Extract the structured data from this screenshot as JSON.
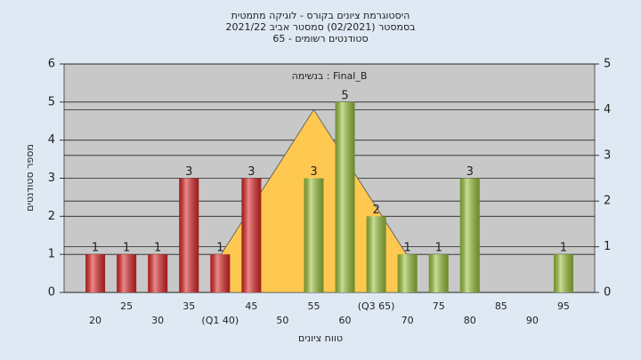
{
  "chart_data": {
    "type": "bar",
    "title": [
      "היסטוגרמת ציונים בקורס - לוגיקה מתמטית",
      "בסמסטר  (02/2021)  סמסטר אביב 2021/22",
      "סטודנטים רשומים - 65"
    ],
    "annotation": "בנשימה : Final_B",
    "xlabel": "טווח ציונים",
    "ylabel": "מספר סטודנטים",
    "categories": [
      "20",
      "25",
      "30",
      "35",
      "(Q1 40)",
      "45",
      "50",
      "55",
      "60",
      "(Q3 65)",
      "70",
      "75",
      "80",
      "85",
      "90",
      "95"
    ],
    "values": [
      1,
      1,
      1,
      3,
      1,
      3,
      0,
      3,
      5,
      2,
      1,
      1,
      3,
      0,
      0,
      1
    ],
    "colors": [
      "#e02828",
      "#e02828",
      "#e02828",
      "#e02828",
      "#e02828",
      "#e02828",
      "#e02828",
      "#9cc43c",
      "#9cc43c",
      "#9cc43c",
      "#9cc43c",
      "#9cc43c",
      "#9cc43c",
      "#9cc43c",
      "#9cc43c",
      "#9cc43c"
    ],
    "curve": {
      "color": "#ffc850",
      "axis": "y2",
      "values": [
        null,
        null,
        null,
        null,
        0.8,
        1.87,
        2.93,
        4,
        2.93,
        1.87,
        0.8,
        null,
        null,
        null,
        null,
        null
      ]
    },
    "ylim": [
      0,
      6
    ],
    "yticks": [
      0,
      1,
      2,
      3,
      4,
      5,
      6
    ],
    "y2lim": [
      0,
      5
    ],
    "y2ticks": [
      0,
      1,
      2,
      3,
      4,
      5
    ],
    "grid": true
  }
}
